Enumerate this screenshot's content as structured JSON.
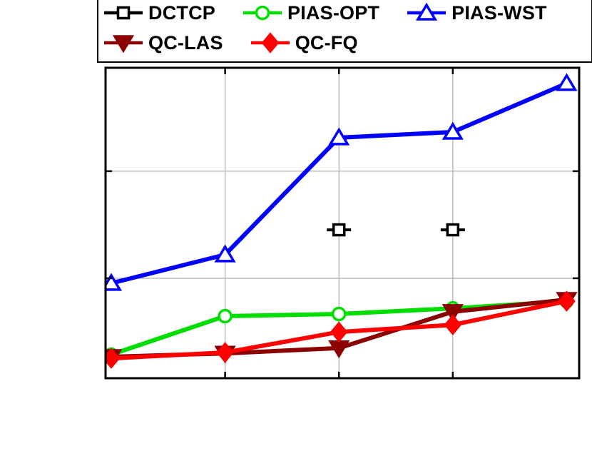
{
  "figure": {
    "background": "#ffffff",
    "plot_border_color": "#000000"
  },
  "legend": {
    "rows": [
      [
        "DCTCP",
        "PIAS-OPT",
        "PIAS-WST"
      ],
      [
        "QC-LAS",
        "QC-FQ"
      ]
    ],
    "position": "top"
  },
  "chart_data": {
    "type": "line",
    "title": "",
    "xlabel": "",
    "ylabel": "",
    "axis_tick_labels_visible": false,
    "note": "Axis tick labels and axis titles are not visible in the screenshot. Y values are estimated as percent of plot height (0 = bottom axis, 100 = top axis); x = data point index 1-5.",
    "x": [
      1,
      2,
      3,
      4,
      5
    ],
    "xlim": [
      0.95,
      5.11
    ],
    "ylim": [
      0,
      100
    ],
    "grid": {
      "vertical_at_x": [
        2,
        3,
        4
      ],
      "horizontal_at_y": [
        32.2,
        66.7
      ],
      "color": "#b3b3b3"
    },
    "series": [
      {
        "name": "DCTCP",
        "color": "#000000",
        "marker": "square",
        "marker_filled": false,
        "line_style": "marker-stubs",
        "values": [
          null,
          null,
          47.8,
          47.8,
          null
        ]
      },
      {
        "name": "PIAS-OPT",
        "color": "#00dd00",
        "marker": "circle",
        "marker_filled": false,
        "line_style": "solid",
        "values": [
          7.6,
          20.0,
          20.7,
          22.5,
          24.8
        ]
      },
      {
        "name": "PIAS-WST",
        "color": "#0000ff",
        "marker": "triangle-up",
        "marker_filled": false,
        "line_style": "solid",
        "values": [
          30.6,
          39.8,
          77.5,
          79.3,
          95.0
        ]
      },
      {
        "name": "QC-LAS",
        "color": "#8b0000",
        "marker": "triangle-down",
        "marker_filled": true,
        "line_style": "solid",
        "values": [
          6.9,
          8.0,
          9.7,
          21.4,
          25.3
        ]
      },
      {
        "name": "QC-FQ",
        "color": "#ff0000",
        "marker": "diamond",
        "marker_filled": true,
        "line_style": "solid",
        "values": [
          6.4,
          8.3,
          14.9,
          17.2,
          24.8
        ]
      }
    ],
    "z_order": [
      "PIAS-OPT",
      "QC-LAS",
      "QC-FQ",
      "PIAS-WST",
      "DCTCP"
    ]
  }
}
